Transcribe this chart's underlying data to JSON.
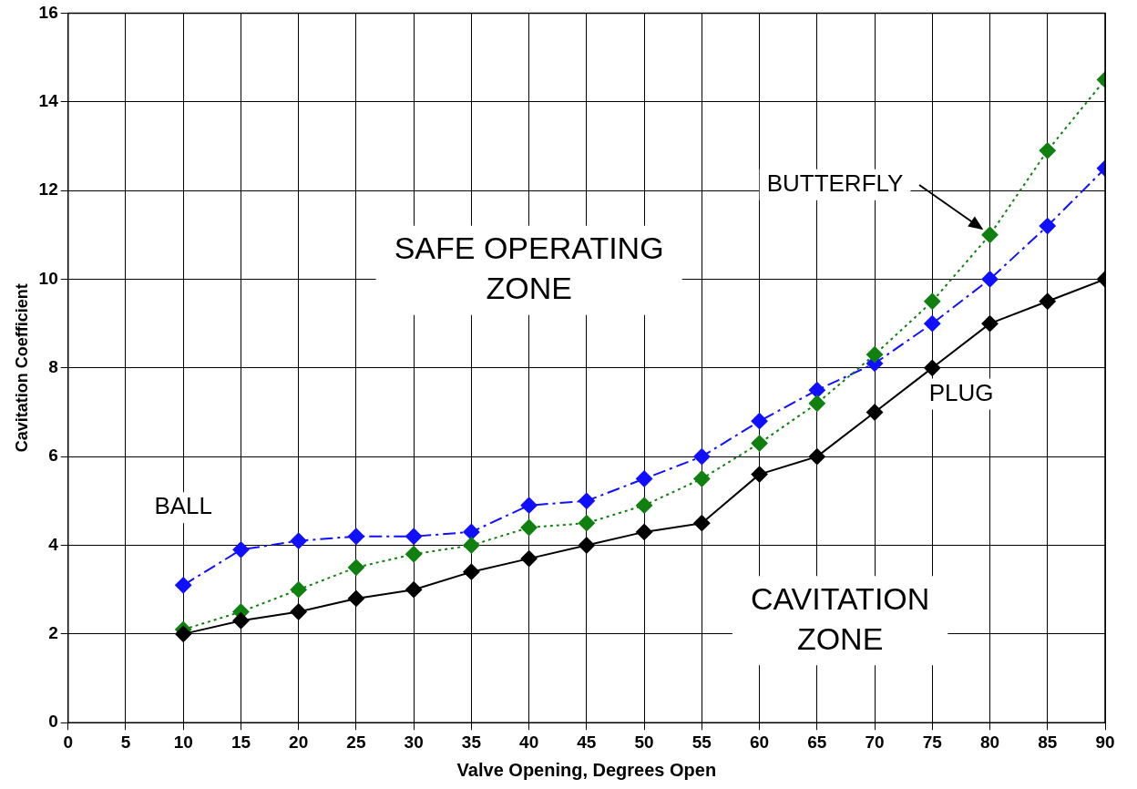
{
  "chart_data": {
    "type": "line",
    "xlabel": "Valve Opening, Degrees Open",
    "ylabel": "Cavitation Coefficient",
    "x": [
      10,
      15,
      20,
      25,
      30,
      35,
      40,
      45,
      50,
      55,
      60,
      65,
      70,
      75,
      80,
      85,
      90
    ],
    "series": [
      {
        "name": "PLUG",
        "color": "#000000",
        "line_style": "solid",
        "values": [
          2.0,
          2.3,
          2.5,
          2.8,
          3.0,
          3.4,
          3.7,
          4.0,
          4.3,
          4.5,
          5.6,
          6.0,
          7.0,
          8.0,
          9.0,
          9.5,
          10.0
        ]
      },
      {
        "name": "BUTTERFLY",
        "color": "#108010",
        "line_style": "dotted",
        "values": [
          2.1,
          2.5,
          3.0,
          3.5,
          3.8,
          4.0,
          4.4,
          4.5,
          4.9,
          5.5,
          6.3,
          7.2,
          8.3,
          9.5,
          11.0,
          12.9,
          14.5
        ]
      },
      {
        "name": "BALL",
        "color": "#1010ff",
        "line_style": "dashed",
        "values": [
          3.1,
          3.9,
          4.1,
          4.2,
          4.2,
          4.3,
          4.9,
          5.0,
          5.5,
          6.0,
          6.8,
          7.5,
          8.1,
          9.0,
          10.0,
          11.2,
          12.5
        ]
      }
    ],
    "xlim": [
      0,
      90
    ],
    "xticks": [
      0,
      5,
      10,
      15,
      20,
      25,
      30,
      35,
      40,
      45,
      50,
      55,
      60,
      65,
      70,
      75,
      80,
      85,
      90
    ],
    "ylim": [
      0,
      16
    ],
    "yticks": [
      0,
      2,
      4,
      6,
      8,
      10,
      12,
      14,
      16
    ],
    "grid": true,
    "legend": false,
    "marker": "diamond",
    "annotations": [
      "SAFE OPERATING\nZONE",
      "CAVITATION\nZONE"
    ]
  }
}
